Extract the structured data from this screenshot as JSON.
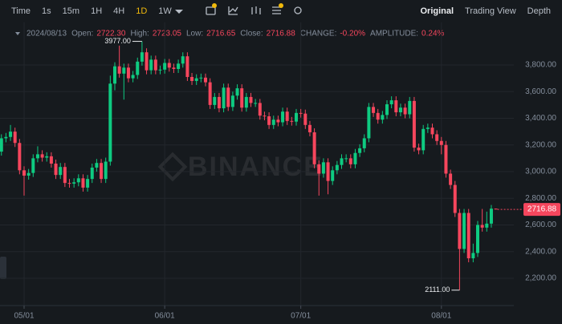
{
  "toolbar": {
    "intervals": [
      "Time",
      "1s",
      "15m",
      "1H",
      "4H",
      "1D",
      "1W"
    ],
    "active_interval": 5,
    "views": [
      "Original",
      "Trading View",
      "Depth"
    ],
    "active_view": 0
  },
  "chart_data": {
    "type": "candlestick",
    "info": {
      "date": "2024/08/13",
      "items": [
        {
          "label": "Open:",
          "value": "2722.30"
        },
        {
          "label": "High:",
          "value": "2723.05"
        },
        {
          "label": "Low:",
          "value": "2716.65"
        },
        {
          "label": "Close:",
          "value": "2716.88"
        },
        {
          "label": "CHANGE:",
          "value": "-0.20%"
        },
        {
          "label": "AMPLITUDE:",
          "value": "0.24%"
        }
      ]
    },
    "watermark": "BINANCE",
    "up_color": "#0ecb81",
    "down_color": "#f6465d",
    "categories": [
      null,
      null,
      null,
      null,
      null,
      "05/01",
      null,
      null,
      null,
      null,
      null,
      null,
      null,
      null,
      null,
      null,
      null,
      null,
      null,
      null,
      null,
      null,
      null,
      null,
      null,
      null,
      null,
      null,
      null,
      null,
      null,
      null,
      null,
      null,
      null,
      null,
      "06/01",
      null,
      null,
      null,
      null,
      null,
      null,
      null,
      null,
      null,
      null,
      null,
      null,
      null,
      null,
      null,
      null,
      null,
      null,
      null,
      null,
      null,
      null,
      null,
      null,
      null,
      null,
      null,
      null,
      null,
      "07/01",
      null,
      null,
      null,
      null,
      null,
      null,
      null,
      null,
      null,
      null,
      null,
      null,
      null,
      null,
      null,
      null,
      null,
      null,
      null,
      null,
      null,
      null,
      null,
      null,
      null,
      null,
      null,
      null,
      null,
      null,
      "08/01",
      null,
      null,
      null,
      null,
      null,
      null,
      null,
      null,
      null,
      null,
      null,
      null
    ],
    "open": [
      3150,
      3250,
      3260,
      3300,
      3215,
      3010,
      2970,
      2990,
      3100,
      3130,
      3105,
      3115,
      3060,
      2975,
      3035,
      2915,
      2910,
      2920,
      2950,
      2880,
      2945,
      3030,
      3065,
      2945,
      3075,
      3660,
      3790,
      3735,
      3780,
      3700,
      3725,
      3825,
      3895,
      3760,
      3840,
      3760,
      3765,
      3815,
      3780,
      3770,
      3810,
      3865,
      3710,
      3680,
      3700,
      3705,
      3670,
      3500,
      3560,
      3475,
      3630,
      3485,
      3570,
      3625,
      3480,
      3560,
      3515,
      3515,
      3420,
      3415,
      3350,
      3390,
      3370,
      3450,
      3380,
      3375,
      3440,
      3435,
      3350,
      3295,
      3055,
      2985,
      3070,
      2930,
      3010,
      3050,
      3100,
      3100,
      3055,
      3140,
      3175,
      3250,
      3485,
      3440,
      3390,
      3425,
      3505,
      3535,
      3445,
      3480,
      3430,
      3530,
      3180,
      3160,
      3320,
      3330,
      3280,
      3230,
      3200,
      2985,
      2900,
      2690,
      2420,
      2690,
      2350,
      2390,
      2600,
      2580,
      2610,
      2722.3
    ],
    "high": [
      3280,
      3290,
      3350,
      3330,
      3245,
      3040,
      3020,
      3130,
      3190,
      3160,
      3145,
      3145,
      3090,
      3065,
      3065,
      2945,
      2950,
      2980,
      2980,
      2975,
      3060,
      3095,
      3095,
      3105,
      3720,
      3820,
      3945,
      3810,
      3810,
      3755,
      3855,
      3977,
      3925,
      3870,
      3870,
      3795,
      3845,
      3845,
      3810,
      3840,
      3895,
      3895,
      3740,
      3730,
      3735,
      3735,
      3700,
      3590,
      3590,
      3660,
      3660,
      3600,
      3655,
      3655,
      3590,
      3590,
      3545,
      3545,
      3450,
      3445,
      3420,
      3420,
      3480,
      3480,
      3410,
      3470,
      3470,
      3465,
      3380,
      3325,
      3085,
      3100,
      3100,
      3040,
      3080,
      3130,
      3130,
      3130,
      3170,
      3205,
      3280,
      3515,
      3515,
      3470,
      3455,
      3535,
      3565,
      3565,
      3510,
      3510,
      3560,
      3560,
      3210,
      3350,
      3360,
      3360,
      3310,
      3260,
      3230,
      3015,
      2930,
      2720,
      2720,
      2720,
      2460,
      2630,
      2720,
      2700,
      2750,
      2723.05
    ],
    "low": [
      3120,
      3220,
      3230,
      3185,
      2980,
      2820,
      2940,
      2960,
      3070,
      3075,
      3075,
      3030,
      2945,
      2945,
      2885,
      2880,
      2880,
      2890,
      2850,
      2850,
      2915,
      3000,
      2915,
      2915,
      3045,
      3610,
      3705,
      3540,
      3670,
      3670,
      3695,
      3795,
      3730,
      3730,
      3730,
      3730,
      3735,
      3750,
      3740,
      3740,
      3780,
      3680,
      3650,
      3650,
      3670,
      3640,
      3470,
      3470,
      3445,
      3445,
      3455,
      3455,
      3540,
      3450,
      3450,
      3485,
      3485,
      3390,
      3385,
      3320,
      3320,
      3340,
      3340,
      3350,
      3345,
      3345,
      3405,
      3320,
      3265,
      3025,
      2820,
      2955,
      2830,
      2900,
      2980,
      3020,
      3070,
      3025,
      3025,
      3110,
      3145,
      3220,
      3410,
      3360,
      3360,
      3395,
      3475,
      3415,
      3415,
      3400,
      3400,
      3150,
      3130,
      3130,
      3290,
      3250,
      3200,
      3130,
      2955,
      2870,
      2660,
      2111,
      2390,
      2320,
      2320,
      2360,
      2550,
      2550,
      2580,
      2716.65
    ],
    "close": [
      3250,
      3260,
      3300,
      3215,
      3010,
      2970,
      2990,
      3100,
      3130,
      3105,
      3115,
      3060,
      2975,
      3035,
      2915,
      2910,
      2920,
      2950,
      2880,
      2945,
      3030,
      3065,
      2945,
      3075,
      3660,
      3790,
      3735,
      3780,
      3700,
      3725,
      3825,
      3895,
      3760,
      3840,
      3760,
      3765,
      3815,
      3780,
      3770,
      3810,
      3865,
      3710,
      3680,
      3700,
      3705,
      3670,
      3500,
      3560,
      3475,
      3630,
      3485,
      3570,
      3625,
      3480,
      3560,
      3515,
      3515,
      3420,
      3415,
      3350,
      3390,
      3370,
      3450,
      3380,
      3375,
      3440,
      3435,
      3350,
      3295,
      3055,
      2985,
      3070,
      2930,
      3010,
      3050,
      3100,
      3100,
      3055,
      3140,
      3175,
      3250,
      3485,
      3440,
      3390,
      3425,
      3505,
      3535,
      3445,
      3480,
      3430,
      3530,
      3180,
      3160,
      3320,
      3330,
      3280,
      3230,
      3200,
      2985,
      2900,
      2690,
      2420,
      2690,
      2350,
      2390,
      2600,
      2580,
      2610,
      2722.3,
      2716.88
    ],
    "max_label": {
      "value": 3977,
      "label": "3977.00"
    },
    "min_label": {
      "value": 2111,
      "label": "2111.00"
    },
    "last_price": {
      "value": 2716.88,
      "label": "2716.88"
    },
    "ylim": [
      2000,
      4120
    ],
    "yticks": [
      {
        "value": 2200,
        "label": "2,200.00"
      },
      {
        "value": 2400,
        "label": "2,400.00"
      },
      {
        "value": 2600,
        "label": "2,600.00"
      },
      {
        "value": 2800,
        "label": "2,800.00"
      },
      {
        "value": 3000,
        "label": "3,000.00"
      },
      {
        "value": 3200,
        "label": "3,200.00"
      },
      {
        "value": 3400,
        "label": "3,400.00"
      },
      {
        "value": 3600,
        "label": "3,600.00"
      },
      {
        "value": 3800,
        "label": "3,800.00"
      }
    ],
    "grid": true
  }
}
